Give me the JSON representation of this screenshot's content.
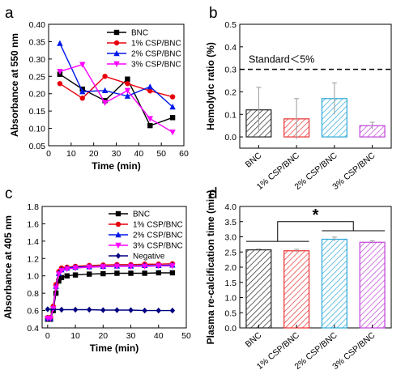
{
  "chart_data": [
    {
      "panel": "a",
      "type": "line",
      "xlabel": "Time (min)",
      "ylabel": "Absorbance at 550 nm",
      "xlim": [
        0,
        60
      ],
      "ylim": [
        0.05,
        0.4
      ],
      "xticks": [
        "0",
        "10",
        "20",
        "30",
        "40",
        "50",
        "60"
      ],
      "yticks": [
        "0.05",
        "0.10",
        "0.15",
        "0.20",
        "0.25",
        "0.30",
        "0.35",
        "0.40"
      ],
      "legend_position": "top-center",
      "x": [
        5,
        15,
        25,
        35,
        45,
        55
      ],
      "series": [
        {
          "name": "BNC",
          "color": "#000000",
          "marker": "square",
          "values": [
            0.256,
            0.213,
            0.18,
            0.242,
            0.108,
            0.131
          ]
        },
        {
          "name": "1% CSP/BNC",
          "color": "#e8000b",
          "marker": "circle",
          "values": [
            0.229,
            0.187,
            0.25,
            0.229,
            0.208,
            0.191
          ]
        },
        {
          "name": "2% CSP/BNC",
          "color": "#0018e8",
          "marker": "triangle-up",
          "values": [
            0.345,
            0.206,
            0.209,
            0.193,
            0.22,
            0.162
          ]
        },
        {
          "name": "3% CSP/BNC",
          "color": "#ff00ff",
          "marker": "triangle-down",
          "values": [
            0.264,
            0.284,
            0.174,
            0.209,
            0.128,
            0.089
          ]
        }
      ]
    },
    {
      "panel": "b",
      "type": "bar",
      "ylabel": "Hemolytic ratio (%)",
      "ylim": [
        -0.05,
        0.5
      ],
      "yticks": [
        "0.0",
        "0.1",
        "0.2",
        "0.3",
        "0.4",
        "0.5"
      ],
      "categories": [
        "BNC",
        "1% CSP/BNC",
        "2% CSP/BNC",
        "3% CSP/BNC"
      ],
      "values": [
        0.12,
        0.08,
        0.17,
        0.05
      ],
      "errors": [
        0.1,
        0.09,
        0.07,
        0.015
      ],
      "colors": [
        "#222222",
        "#e83030",
        "#2aa8d8",
        "#c040d8"
      ],
      "reference_line": {
        "y": 0.3,
        "label": "Standard＜5%"
      }
    },
    {
      "panel": "c",
      "type": "line",
      "xlabel": "Time (min)",
      "ylabel": "Absorbance at 405 nm",
      "xlim": [
        -2,
        50
      ],
      "ylim": [
        0.4,
        1.8
      ],
      "xticks": [
        "0",
        "10",
        "20",
        "30",
        "40",
        "50"
      ],
      "yticks": [
        "0.4",
        "0.6",
        "0.8",
        "1.0",
        "1.2",
        "1.4",
        "1.6",
        "1.8"
      ],
      "legend_position": "top-right",
      "series": [
        {
          "name": "BNC",
          "color": "#000000",
          "marker": "square",
          "x": [
            0,
            1,
            2,
            3,
            4,
            5,
            7,
            10,
            15,
            20,
            25,
            30,
            35,
            40,
            45
          ],
          "values": [
            0.5,
            0.5,
            0.6,
            0.8,
            0.94,
            0.98,
            1.0,
            1.01,
            1.02,
            1.025,
            1.03,
            1.03,
            1.03,
            1.035,
            1.035
          ]
        },
        {
          "name": "1% CSP/BNC",
          "color": "#e8000b",
          "marker": "circle",
          "x": [
            0,
            1,
            2,
            3,
            4,
            5,
            7,
            10,
            15,
            20,
            25,
            30,
            35,
            40,
            45
          ],
          "values": [
            0.52,
            0.52,
            0.65,
            0.9,
            1.05,
            1.09,
            1.1,
            1.11,
            1.12,
            1.125,
            1.13,
            1.13,
            1.135,
            1.135,
            1.14
          ]
        },
        {
          "name": "2% CSP/BNC",
          "color": "#0018e8",
          "marker": "triangle-up",
          "x": [
            0,
            1,
            2,
            3,
            4,
            5,
            7,
            10,
            15,
            20,
            25,
            30,
            35,
            40,
            45
          ],
          "values": [
            0.51,
            0.51,
            0.63,
            0.88,
            1.03,
            1.07,
            1.09,
            1.1,
            1.105,
            1.11,
            1.115,
            1.115,
            1.12,
            1.12,
            1.125
          ]
        },
        {
          "name": "3% CSP/BNC",
          "color": "#ff00ff",
          "marker": "triangle-down",
          "x": [
            0,
            1,
            2,
            3,
            4,
            5,
            7,
            10,
            15,
            20,
            25,
            30,
            35,
            40,
            45
          ],
          "values": [
            0.51,
            0.51,
            0.62,
            0.86,
            1.02,
            1.06,
            1.08,
            1.09,
            1.1,
            1.105,
            1.11,
            1.11,
            1.11,
            1.115,
            1.115
          ]
        },
        {
          "name": "Negative",
          "color": "#000080",
          "marker": "diamond",
          "x": [
            0,
            5,
            10,
            15,
            20,
            25,
            30,
            35,
            40,
            45
          ],
          "values": [
            0.615,
            0.61,
            0.61,
            0.61,
            0.605,
            0.605,
            0.605,
            0.6,
            0.6,
            0.6
          ]
        }
      ]
    },
    {
      "panel": "d",
      "type": "bar",
      "ylabel": "Plasma re-calcification time (min)",
      "ylim": [
        0,
        4.0
      ],
      "yticks": [
        "0.0",
        "0.5",
        "1.0",
        "1.5",
        "2.0",
        "2.5",
        "3.0",
        "3.5",
        "4.0"
      ],
      "categories": [
        "BNC",
        "1% CSP/BNC",
        "2% CSP/BNC",
        "3% CSP/BNC"
      ],
      "values": [
        2.57,
        2.54,
        2.92,
        2.82
      ],
      "errors": [
        0.03,
        0.05,
        0.07,
        0.05
      ],
      "colors": [
        "#222222",
        "#e83030",
        "#2aa8d8",
        "#c040d8"
      ],
      "significance": "*"
    }
  ],
  "panel_labels": [
    "a",
    "b",
    "c",
    "d"
  ]
}
